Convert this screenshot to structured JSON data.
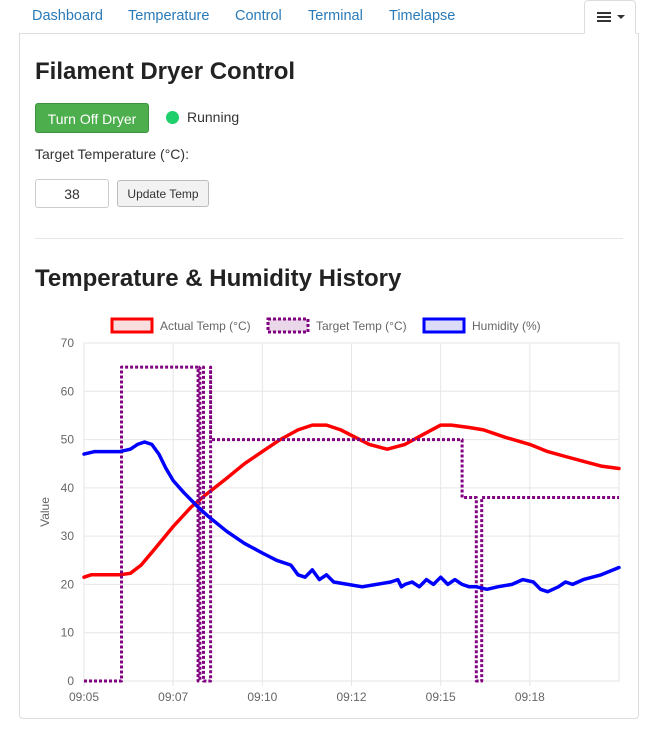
{
  "nav": {
    "tabs": [
      "Dashboard",
      "Temperature",
      "Control",
      "Terminal",
      "Timelapse"
    ],
    "menu_icon": "hamburger-menu-icon"
  },
  "dryer": {
    "title": "Filament Dryer Control",
    "toggle_label": "Turn Off Dryer",
    "status": "Running",
    "status_color": "#1ecf6c",
    "target_label": "Target Temperature (°C):",
    "target_value": "38",
    "update_label": "Update Temp"
  },
  "colors": {
    "accent_link": "#2a7ab8",
    "button_green": "#4cae4c"
  },
  "history_title": "Temperature & Humidity History",
  "chart_data": {
    "type": "line",
    "ylabel": "Value",
    "xlabel": "",
    "ylim": [
      0,
      70
    ],
    "yticks": [
      0,
      10,
      20,
      30,
      40,
      50,
      60,
      70
    ],
    "xlim": [
      0,
      15
    ],
    "xticks": [
      {
        "label": "09:05",
        "value": 0
      },
      {
        "label": "09:07",
        "value": 2.5
      },
      {
        "label": "09:10",
        "value": 5
      },
      {
        "label": "09:12",
        "value": 7.5
      },
      {
        "label": "09:15",
        "value": 10
      },
      {
        "label": "09:18",
        "value": 12.5
      }
    ],
    "grid": true,
    "legend_position": "top",
    "series": [
      {
        "name": "Actual Temp (°C)",
        "color": "#ff0000",
        "fill": "#f8dede",
        "dashed": false,
        "points": [
          [
            0,
            21.5
          ],
          [
            0.2,
            22
          ],
          [
            1,
            22
          ],
          [
            1.3,
            22.3
          ],
          [
            1.6,
            24
          ],
          [
            2,
            27.5
          ],
          [
            2.5,
            32
          ],
          [
            3,
            36
          ],
          [
            3.4,
            38.5
          ],
          [
            4,
            42
          ],
          [
            4.5,
            45
          ],
          [
            5,
            47.5
          ],
          [
            5.5,
            50
          ],
          [
            6,
            52
          ],
          [
            6.4,
            53
          ],
          [
            6.8,
            53
          ],
          [
            7.2,
            52
          ],
          [
            7.6,
            50.5
          ],
          [
            8,
            49
          ],
          [
            8.5,
            48
          ],
          [
            9,
            49
          ],
          [
            9.5,
            51
          ],
          [
            10,
            53
          ],
          [
            10.3,
            53
          ],
          [
            10.8,
            52.5
          ],
          [
            11.2,
            52
          ],
          [
            11.8,
            50.5
          ],
          [
            12.5,
            49
          ],
          [
            13,
            47.5
          ],
          [
            13.5,
            46.5
          ],
          [
            14,
            45.5
          ],
          [
            14.5,
            44.5
          ],
          [
            15,
            44
          ]
        ]
      },
      {
        "name": "Target Temp (°C)",
        "color": "#800080",
        "fill": "#ead8ea",
        "dashed": true,
        "points": [
          [
            0,
            0
          ],
          [
            1.05,
            0
          ],
          [
            1.05,
            65
          ],
          [
            3.2,
            65
          ],
          [
            3.2,
            0
          ],
          [
            3.25,
            0
          ],
          [
            3.25,
            65
          ],
          [
            3.35,
            65
          ],
          [
            3.35,
            0
          ],
          [
            3.55,
            0
          ],
          [
            3.55,
            65
          ],
          [
            3.55,
            50
          ],
          [
            10.6,
            50
          ],
          [
            10.6,
            38
          ],
          [
            11,
            38
          ],
          [
            11,
            0
          ],
          [
            11.15,
            0
          ],
          [
            11.15,
            38
          ],
          [
            15,
            38
          ]
        ]
      },
      {
        "name": "Humidity (%)",
        "color": "#0000ff",
        "fill": "#dcdcf8",
        "dashed": false,
        "points": [
          [
            0,
            47
          ],
          [
            0.3,
            47.5
          ],
          [
            1,
            47.5
          ],
          [
            1.3,
            48
          ],
          [
            1.5,
            49
          ],
          [
            1.7,
            49.5
          ],
          [
            1.9,
            49
          ],
          [
            2.1,
            47
          ],
          [
            2.3,
            44
          ],
          [
            2.5,
            41.5
          ],
          [
            2.8,
            39
          ],
          [
            3,
            37.5
          ],
          [
            3.2,
            36
          ],
          [
            3.5,
            34
          ],
          [
            4,
            31
          ],
          [
            4.5,
            28.5
          ],
          [
            5,
            26.5
          ],
          [
            5.4,
            25
          ],
          [
            5.8,
            24
          ],
          [
            6,
            22
          ],
          [
            6.2,
            21.5
          ],
          [
            6.4,
            23
          ],
          [
            6.6,
            21
          ],
          [
            6.8,
            22
          ],
          [
            7,
            20.5
          ],
          [
            7.4,
            20
          ],
          [
            7.8,
            19.5
          ],
          [
            8.2,
            20
          ],
          [
            8.6,
            20.5
          ],
          [
            8.8,
            21
          ],
          [
            8.9,
            19.5
          ],
          [
            9,
            20
          ],
          [
            9.2,
            20.5
          ],
          [
            9.4,
            19.5
          ],
          [
            9.6,
            21
          ],
          [
            9.8,
            20
          ],
          [
            10,
            21.5
          ],
          [
            10.2,
            20
          ],
          [
            10.4,
            21
          ],
          [
            10.6,
            20
          ],
          [
            10.8,
            19.5
          ],
          [
            11,
            19.5
          ],
          [
            11.3,
            19
          ],
          [
            11.6,
            19.5
          ],
          [
            12,
            20
          ],
          [
            12.3,
            21
          ],
          [
            12.6,
            20.5
          ],
          [
            12.8,
            19
          ],
          [
            13,
            18.5
          ],
          [
            13.3,
            19.5
          ],
          [
            13.5,
            20.5
          ],
          [
            13.7,
            20
          ],
          [
            14,
            21
          ],
          [
            14.5,
            22
          ],
          [
            15,
            23.5
          ]
        ]
      }
    ]
  }
}
